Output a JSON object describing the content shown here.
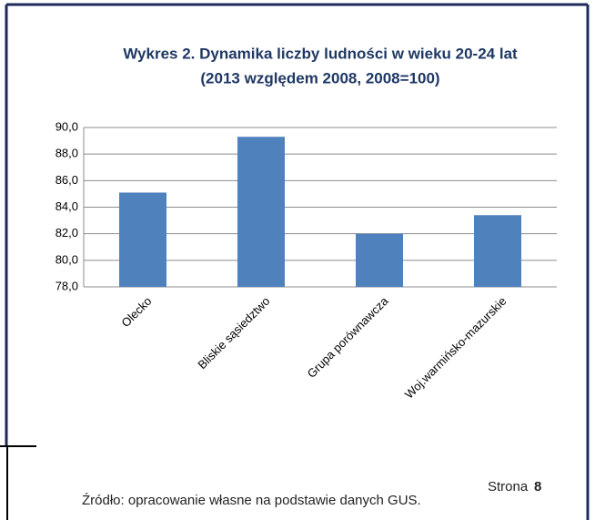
{
  "chart_data": {
    "type": "bar",
    "title": [
      "Wykres 2. Dynamika liczby ludności w wieku 20-24 lat",
      "(2013 względem 2008, 2008=100)"
    ],
    "categories": [
      "Olecko",
      "Bliskie sąsiedztwo",
      "Grupa porównawcza",
      "Woj.warmińsko-mazurskie"
    ],
    "values": [
      85.1,
      89.3,
      82.0,
      83.4
    ],
    "color": "#4f81bd",
    "ylim": [
      78,
      90
    ],
    "yticks": [
      {
        "value": 78,
        "label": "78,0"
      },
      {
        "value": 80,
        "label": "80,0"
      },
      {
        "value": 82,
        "label": "82,0"
      },
      {
        "value": 84,
        "label": "84,0"
      },
      {
        "value": 86,
        "label": "86,0"
      },
      {
        "value": 88,
        "label": "88,0"
      },
      {
        "value": 90,
        "label": "90,0"
      }
    ],
    "grid": true
  },
  "footer": {
    "source": "Źródło: opracowanie własne na podstawie danych GUS.",
    "page_label": "Strona",
    "page_number": "8"
  }
}
